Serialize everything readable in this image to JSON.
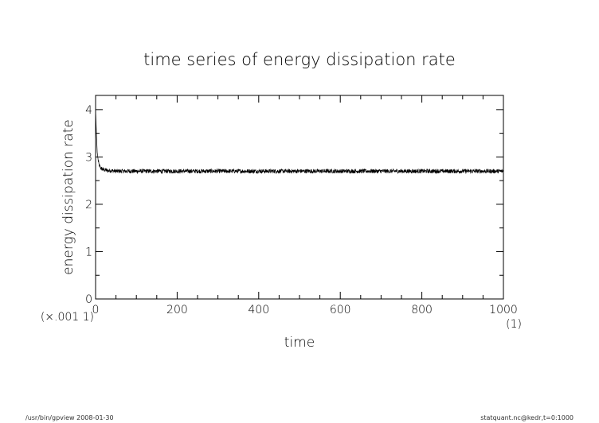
{
  "chart_data": {
    "type": "line",
    "title": "time series of energy dissipation rate",
    "xlabel": "time",
    "ylabel": "energy dissipation rate",
    "x_unit": "(1)",
    "y_unit": "(×.001 1)",
    "xlim": [
      0,
      1000
    ],
    "ylim": [
      0,
      4.3
    ],
    "xticks": [
      0,
      200,
      400,
      600,
      800,
      1000
    ],
    "yticks": [
      0,
      1,
      2,
      3,
      4
    ],
    "grid": false,
    "series": [
      {
        "x": [
          0,
          2,
          4,
          6,
          8,
          10,
          12,
          15,
          20,
          25,
          30,
          40,
          50,
          60,
          80,
          100,
          150,
          200,
          250,
          300,
          350,
          400,
          450,
          500,
          550,
          600,
          650,
          700,
          750,
          800,
          850,
          900,
          950,
          1000
        ],
        "y": [
          4.0,
          3.5,
          3.1,
          2.95,
          2.85,
          2.8,
          2.77,
          2.75,
          2.73,
          2.72,
          2.71,
          2.71,
          2.7,
          2.7,
          2.7,
          2.7,
          2.7,
          2.7,
          2.7,
          2.7,
          2.7,
          2.7,
          2.7,
          2.7,
          2.7,
          2.7,
          2.7,
          2.7,
          2.7,
          2.7,
          2.7,
          2.7,
          2.7,
          2.7
        ]
      }
    ]
  },
  "footer": {
    "left": "/usr/bin/gpview   2008-01-30",
    "right": "statquant.nc@kedr,t=0:1000"
  }
}
